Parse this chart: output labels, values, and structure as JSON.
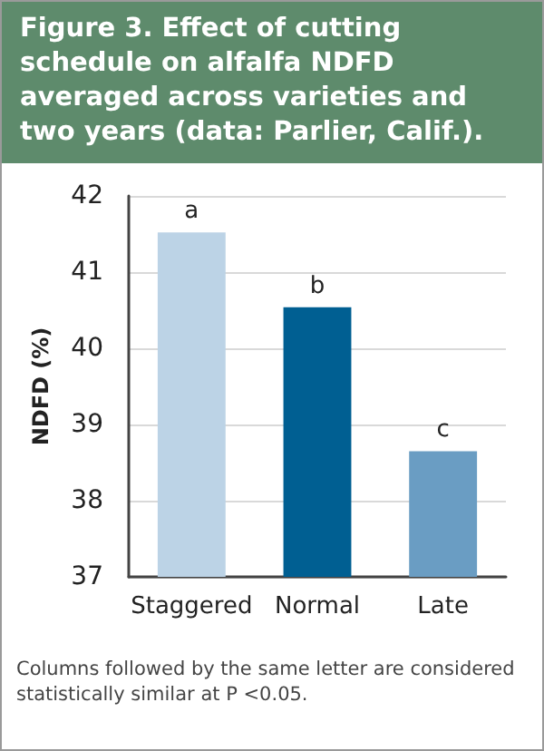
{
  "chart_data": {
    "type": "bar",
    "title": "Figure 3. Effect of cutting schedule on alfalfa NDFD averaged across varieties and two years (data: Parlier, Calif.).",
    "ylabel": "NDFD (%)",
    "categories": [
      "Staggered",
      "Normal",
      "Late"
    ],
    "values": [
      41.52,
      40.54,
      38.65
    ],
    "colors": [
      "#bcd3e6",
      "#005f92",
      "#6a9dc3"
    ],
    "value_labels": [
      "a",
      "b",
      "c"
    ],
    "ylim": [
      37,
      42
    ],
    "yticks": [
      37,
      38,
      39,
      40,
      41,
      42
    ],
    "grid": "y",
    "annotations": [
      "Columns followed by the same letter are considered statistically similar at P <0.05."
    ]
  }
}
